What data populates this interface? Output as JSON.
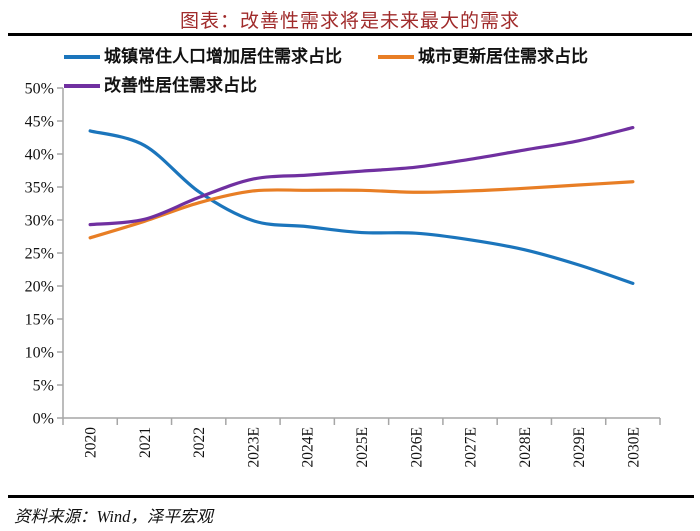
{
  "header": {
    "title": "图表：改善性需求将是未来最大的需求",
    "title_color": "#A02B2B"
  },
  "footer": {
    "source": "资料来源：Wind，泽平宏观"
  },
  "colors": {
    "axis": "#A6A6A6",
    "tick_text": "#111111",
    "rule": "#000000"
  },
  "chart_data": {
    "type": "line",
    "title": "图表：改善性需求将是未来最大的需求",
    "xlabel": "",
    "ylabel": "",
    "grid": false,
    "legend_position": "top-left",
    "smooth": true,
    "ylim": [
      0,
      50
    ],
    "ytick_step": 5,
    "ytick_labels": [
      "50%",
      "45%",
      "40%",
      "35%",
      "30%",
      "25%",
      "20%",
      "15%",
      "10%",
      "5%",
      "0%"
    ],
    "categories": [
      "2020",
      "2021",
      "2022",
      "2023E",
      "2024E",
      "2025E",
      "2026E",
      "2027E",
      "2028E",
      "2029E",
      "2030E"
    ],
    "series": [
      {
        "name": "城镇常住人口增加居住需求占比",
        "color": "#1B75BC",
        "values": [
          43.5,
          41.3,
          34.3,
          29.9,
          29.0,
          28.1,
          28.0,
          27.0,
          25.5,
          23.2,
          20.4
        ]
      },
      {
        "name": "城市更新居住需求占比",
        "color": "#E87E25",
        "values": [
          27.3,
          29.8,
          32.6,
          34.4,
          34.5,
          34.5,
          34.2,
          34.4,
          34.8,
          35.3,
          35.8
        ]
      },
      {
        "name": "改善性居住需求占比",
        "color": "#7030A0",
        "values": [
          29.3,
          30.1,
          33.4,
          36.2,
          36.8,
          37.4,
          38.0,
          39.2,
          40.6,
          42.0,
          44.0
        ]
      }
    ]
  }
}
